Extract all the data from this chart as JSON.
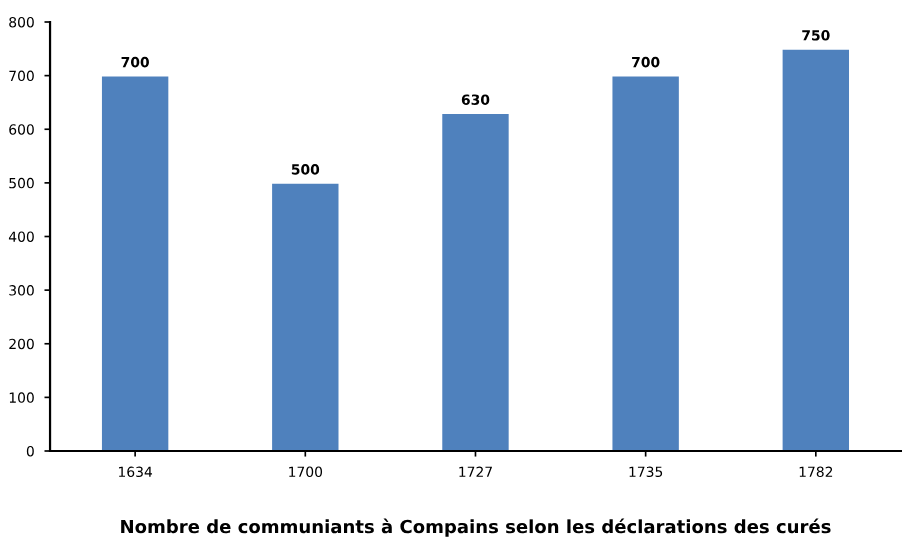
{
  "chart_data": {
    "type": "bar",
    "xlabel": "Nombre de communiants à Compains selon les déclarations des curés",
    "categories": [
      "1634",
      "1700",
      "1727",
      "1735",
      "1782"
    ],
    "values": [
      700,
      500,
      630,
      700,
      750
    ],
    "color": "#4f81bd",
    "ylim": [
      0,
      800
    ],
    "yticks": [
      0,
      100,
      200,
      300,
      400,
      500,
      600,
      700,
      800
    ],
    "data_labels": true,
    "grid": false,
    "legend": false
  }
}
